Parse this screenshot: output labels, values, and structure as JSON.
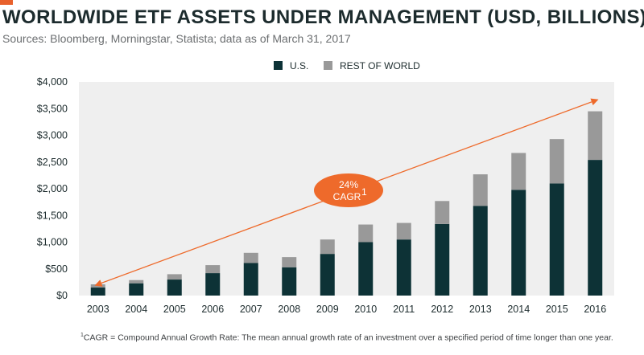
{
  "header": {
    "title": "WORLDWIDE ETF ASSETS UNDER MANAGEMENT (USD, BILLIONS)",
    "subtitle": "Sources: Bloomberg, Morningstar, Statista; data as of March 31, 2017"
  },
  "footnote": {
    "marker": "1",
    "text": "CAGR = Compound Annual Growth Rate: The mean annual growth rate of an investment over a specified period of time longer than one year."
  },
  "colors": {
    "accent": "#e8612c",
    "us": "#0d3236",
    "rest_of_world": "#999999",
    "plot_background": "#efefef",
    "arrow": "#ee6a2b"
  },
  "chart_data": {
    "type": "bar",
    "stacked": true,
    "categories": [
      "2003",
      "2004",
      "2005",
      "2006",
      "2007",
      "2008",
      "2009",
      "2010",
      "2011",
      "2012",
      "2013",
      "2014",
      "2015",
      "2016"
    ],
    "series": [
      {
        "name": "U.S.",
        "values": [
          150,
          230,
          300,
          420,
          610,
          530,
          780,
          1000,
          1050,
          1340,
          1680,
          1980,
          2100,
          2540
        ]
      },
      {
        "name": "REST OF WORLD",
        "values": [
          60,
          60,
          100,
          150,
          190,
          190,
          270,
          330,
          310,
          430,
          590,
          690,
          830,
          910
        ]
      }
    ],
    "ylim": [
      0,
      4000
    ],
    "yticks": [
      0,
      500,
      1000,
      1500,
      2000,
      2500,
      3000,
      3500,
      4000
    ],
    "ytick_labels": [
      "$0",
      "$500",
      "$1,000",
      "$1,500",
      "$2,000",
      "$2,500",
      "$3,000",
      "$3,500",
      "$4,000"
    ],
    "xlabel": "",
    "ylabel": "",
    "legend_position": "top-center",
    "grid": false,
    "annotation": {
      "label_value": "24%",
      "label_name": "CAGR",
      "label_marker": "1",
      "arrow_from": {
        "x": "2003",
        "y": 210
      },
      "arrow_to": {
        "x": "2016",
        "y": 3650
      }
    }
  }
}
